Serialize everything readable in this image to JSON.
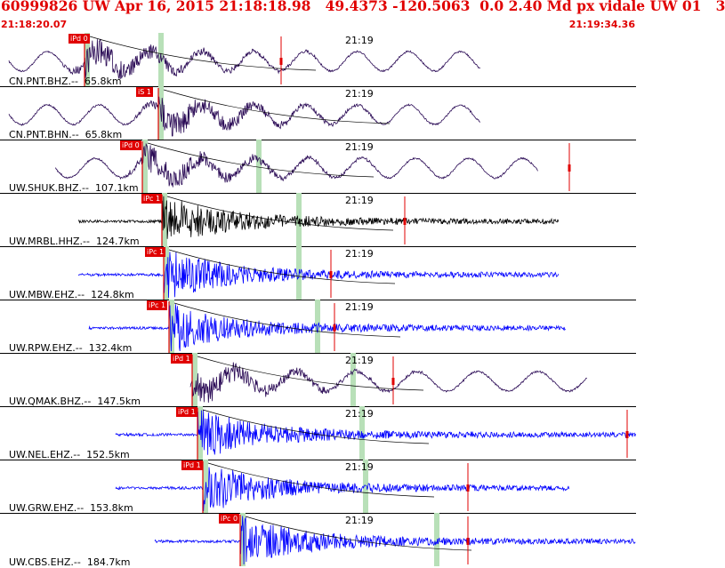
{
  "header": {
    "title": "60999826 UW Apr 16, 2015 21:18:18.98   49.4373 -120.5063  0.0 2.40 Md px vidale UW 01   3",
    "start_time": "21:18:20.07",
    "end_time": "21:19:34.36"
  },
  "colors": {
    "header_red": "#e00000",
    "trace_blue": "#0000ff",
    "trace_purple": "#2a0a55",
    "trace_black": "#000000",
    "window_green": "#b8e0b8"
  },
  "panels": [
    {
      "label": "CN.PNT.BHZ.--  65.8km",
      "time": "21:19",
      "pick": "iPd 0",
      "color": "#2a0a55",
      "kind": "wave"
    },
    {
      "label": "CN.PNT.BHN.--  65.8km",
      "time": "21:19",
      "pick": "iS 1",
      "color": "#2a0a55",
      "kind": "wave"
    },
    {
      "label": "UW.SHUK.BHZ.--  107.1km",
      "time": "21:19",
      "pick": "iPd 0",
      "color": "#2a0a55",
      "kind": "wave"
    },
    {
      "label": "UW.MRBL.HHZ.--  124.7km",
      "time": "21:19",
      "pick": "iPc 1",
      "color": "#000000",
      "kind": "quake"
    },
    {
      "label": "UW.MBW.EHZ.--  124.8km",
      "time": "21:19",
      "pick": "iPc 1",
      "color": "#0000ff",
      "kind": "quake"
    },
    {
      "label": "UW.RPW.EHZ.--  132.4km",
      "time": "21:19",
      "pick": "iPc 1",
      "color": "#0000ff",
      "kind": "quake"
    },
    {
      "label": "UW.QMAK.BHZ.--  147.5km",
      "time": "21:19",
      "pick": "iPd 1",
      "color": "#2a0a55",
      "kind": "wave"
    },
    {
      "label": "UW.NEL.EHZ.--  152.5km",
      "time": "21:19",
      "pick": "iPd 1",
      "color": "#0000ff",
      "kind": "quake"
    },
    {
      "label": "UW.GRW.EHZ.--  153.8km",
      "time": "21:19",
      "pick": "iPd 1",
      "color": "#0000ff",
      "kind": "quake"
    },
    {
      "label": "UW.CBS.EHZ.--  184.7km",
      "time": "21:19",
      "pick": "iPc 0",
      "color": "#0000ff",
      "kind": "quake"
    }
  ]
}
